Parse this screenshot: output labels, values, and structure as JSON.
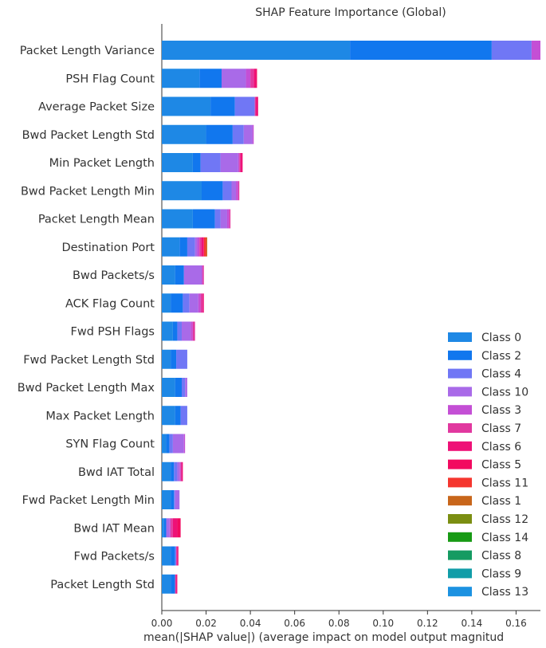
{
  "chart_data": {
    "type": "bar",
    "orientation": "horizontal",
    "stacked": true,
    "title": "SHAP Feature Importance (Global)",
    "xlabel": "mean(|SHAP value|) (average impact on model output magnitud",
    "xlim": [
      0,
      0.171
    ],
    "xticks": [
      0.0,
      0.02,
      0.04,
      0.06,
      0.08,
      0.1,
      0.12,
      0.14,
      0.16
    ],
    "xtick_labels": [
      "0.00",
      "0.02",
      "0.04",
      "0.06",
      "0.08",
      "0.10",
      "0.12",
      "0.14",
      "0.16"
    ],
    "legend_position": "lower-right",
    "categories": [
      "Packet Length Variance",
      "PSH Flag Count",
      "Average Packet Size",
      "Bwd Packet Length Std",
      "Min Packet Length",
      "Bwd Packet Length Min",
      "Packet Length Mean",
      "Destination Port",
      "Bwd Packets/s",
      "ACK Flag Count",
      "Fwd PSH Flags",
      "Fwd Packet Length Std",
      "Bwd Packet Length Max",
      "Max Packet Length",
      "SYN Flag Count",
      "Bwd IAT Total",
      "Fwd Packet Length Min",
      "Bwd IAT Mean",
      "Fwd Packets/s",
      "Packet Length Std"
    ],
    "series": [
      {
        "name": "Class 0",
        "color": "#1E88E5",
        "values": [
          0.085,
          0.017,
          0.022,
          0.02,
          0.014,
          0.018,
          0.014,
          0.008,
          0.006,
          0.004,
          0.005,
          0.004,
          0.006,
          0.006,
          0.002,
          0.004,
          0.004,
          0.001,
          0.004,
          0.004
        ]
      },
      {
        "name": "Class 2",
        "color": "#1177EE",
        "values": [
          0.064,
          0.01,
          0.011,
          0.012,
          0.0035,
          0.0095,
          0.01,
          0.0035,
          0.004,
          0.0055,
          0.002,
          0.0025,
          0.003,
          0.0025,
          0.0015,
          0.0015,
          0.0015,
          0.001,
          0.002,
          0.002
        ]
      },
      {
        "name": "Class 4",
        "color": "#7077F5",
        "values": [
          0.018,
          0.0,
          0.009,
          0.005,
          0.009,
          0.004,
          0.0025,
          0.0035,
          0.0,
          0.003,
          0.002,
          0.005,
          0.0015,
          0.003,
          0.0015,
          0.0015,
          0.0005,
          0.0,
          0.0005,
          0.0
        ]
      },
      {
        "name": "Class 10",
        "color": "#A96AE8",
        "values": [
          0.0,
          0.011,
          0.0,
          0.004,
          0.008,
          0.002,
          0.003,
          0.001,
          0.008,
          0.004,
          0.004,
          0.0,
          0.001,
          0.0,
          0.005,
          0.001,
          0.002,
          0.0015,
          0.0,
          0.0
        ]
      },
      {
        "name": "Class 3",
        "color": "#C44FD5",
        "values": [
          0.004,
          0.002,
          0.0,
          0.0005,
          0.0005,
          0.001,
          0.001,
          0.001,
          0.0005,
          0.001,
          0.001,
          0.0,
          0.0,
          0.0,
          0.0005,
          0.0005,
          0.0,
          0.0005,
          0.0,
          0.0
        ]
      },
      {
        "name": "Class 7",
        "color": "#E1389F",
        "values": [
          0.0,
          0.0015,
          0.0005,
          0.0,
          0.0005,
          0.0005,
          0.0005,
          0.001,
          0.0005,
          0.001,
          0.001,
          0.0,
          0.0,
          0.0,
          0.0,
          0.0005,
          0.0,
          0.001,
          0.0005,
          0.0005
        ]
      },
      {
        "name": "Class 6",
        "color": "#EE1177",
        "values": [
          0.0,
          0.001,
          0.001,
          0.0,
          0.001,
          0.0,
          0.0,
          0.001,
          0.0,
          0.0005,
          0.0,
          0.0,
          0.0,
          0.0,
          0.0,
          0.0005,
          0.0,
          0.002,
          0.0005,
          0.0005
        ]
      },
      {
        "name": "Class 5",
        "color": "#F20A60",
        "values": [
          0.0,
          0.0005,
          0.0,
          0.0,
          0.0,
          0.0,
          0.0,
          0.0,
          0.0,
          0.0,
          0.0,
          0.0,
          0.0,
          0.0,
          0.0,
          0.0,
          0.0,
          0.0015,
          0.0,
          0.0
        ]
      },
      {
        "name": "Class 11",
        "color": "#F5362E",
        "values": [
          0.0,
          0.0,
          0.0,
          0.0,
          0.0,
          0.0,
          0.0,
          0.001,
          0.0,
          0.0,
          0.0,
          0.0,
          0.0,
          0.0,
          0.0,
          0.0,
          0.0,
          0.0,
          0.0,
          0.0
        ]
      },
      {
        "name": "Class 1",
        "color": "#C8661B",
        "values": [
          0.0,
          0.0,
          0.0,
          0.0,
          0.0,
          0.0,
          0.0,
          0.0005,
          0.0,
          0.0,
          0.0,
          0.0,
          0.0,
          0.0,
          0.0,
          0.0,
          0.0,
          0.0,
          0.0,
          0.0
        ]
      },
      {
        "name": "Class 12",
        "color": "#7B8E12",
        "values": [
          0.0,
          0.0,
          0.0,
          0.0,
          0.0,
          0.0,
          0.0,
          0.0,
          0.0,
          0.0,
          0.0,
          0.0,
          0.0,
          0.0,
          0.0,
          0.0,
          0.0,
          0.0,
          0.0,
          0.0
        ]
      },
      {
        "name": "Class 14",
        "color": "#179A14",
        "values": [
          0.0,
          0.0,
          0.0,
          0.0,
          0.0,
          0.0,
          0.0,
          0.0,
          0.0,
          0.0,
          0.0,
          0.0,
          0.0,
          0.0,
          0.0,
          0.0,
          0.0,
          0.0,
          0.0,
          0.0
        ]
      },
      {
        "name": "Class 8",
        "color": "#159B62",
        "values": [
          0.0,
          0.0,
          0.0,
          0.0,
          0.0,
          0.0,
          0.0,
          0.0,
          0.0,
          0.0,
          0.0,
          0.0,
          0.0,
          0.0,
          0.0,
          0.0,
          0.0,
          0.0,
          0.0,
          0.0
        ]
      },
      {
        "name": "Class 9",
        "color": "#119DA8",
        "values": [
          0.0,
          0.0,
          0.0,
          0.0,
          0.0,
          0.0,
          0.0,
          0.0,
          0.0,
          0.0,
          0.0,
          0.0,
          0.0,
          0.0,
          0.0,
          0.0,
          0.0,
          0.0,
          0.0,
          0.0
        ]
      },
      {
        "name": "Class 13",
        "color": "#1C92E1",
        "values": [
          0.0,
          0.0,
          0.0,
          0.0,
          0.0,
          0.0,
          0.0,
          0.0,
          0.0,
          0.0,
          0.0,
          0.0,
          0.0,
          0.0,
          0.0,
          0.0,
          0.0,
          0.0,
          0.0,
          0.0
        ]
      }
    ],
    "legend_order": [
      "Class 0",
      "Class 2",
      "Class 4",
      "Class 10",
      "Class 3",
      "Class 7",
      "Class 6",
      "Class 5",
      "Class 11",
      "Class 1",
      "Class 12",
      "Class 14",
      "Class 8",
      "Class 9",
      "Class 13"
    ]
  }
}
